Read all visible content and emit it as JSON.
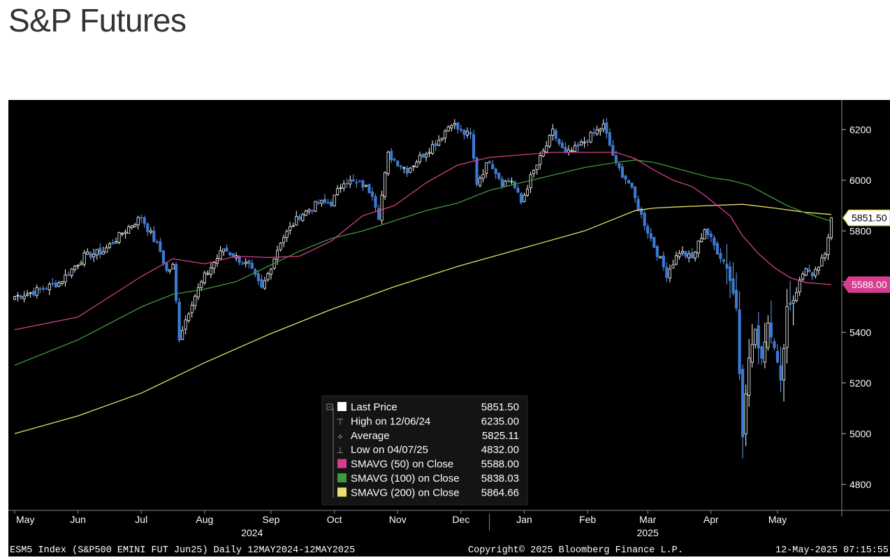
{
  "page": {
    "title": "S&P Futures"
  },
  "colors": {
    "background": "#000000",
    "up_candle": "#ffffff",
    "down_candle": "#3a7bd5",
    "sma50": "#d63d8e",
    "sma100": "#3f9a3a",
    "sma200": "#e8e06a",
    "text": "#ffffff"
  },
  "chart_data": {
    "type": "candlestick",
    "ylim": [
      4700,
      6300
    ],
    "y_ticks": [
      4800,
      5000,
      5200,
      5400,
      5600,
      5800,
      6000,
      6200
    ],
    "y_tick_labels": [
      "4800",
      "5000",
      "5200",
      "5400",
      "",
      "5800",
      "6000",
      "6200"
    ],
    "month_labels": [
      {
        "label": "May",
        "day": 0
      },
      {
        "label": "Jun",
        "day": 20
      },
      {
        "label": "Jul",
        "day": 40
      },
      {
        "label": "Aug",
        "day": 60
      },
      {
        "label": "Sep",
        "day": 81
      },
      {
        "label": "Oct",
        "day": 101
      },
      {
        "label": "Nov",
        "day": 121
      },
      {
        "label": "Dec",
        "day": 141
      },
      {
        "label": "Jan",
        "day": 161
      },
      {
        "label": "Feb",
        "day": 181
      },
      {
        "label": "Mar",
        "day": 200
      },
      {
        "label": "Apr",
        "day": 220
      },
      {
        "label": "May",
        "day": 241
      }
    ],
    "year_labels": [
      {
        "label": "2024",
        "day": 75
      },
      {
        "label": "2025",
        "day": 200
      }
    ],
    "year_separator_day": 150,
    "anchors": [
      [
        0,
        5540
      ],
      [
        6,
        5560
      ],
      [
        14,
        5595
      ],
      [
        22,
        5700
      ],
      [
        28,
        5720
      ],
      [
        36,
        5815
      ],
      [
        40,
        5855
      ],
      [
        46,
        5720
      ],
      [
        48,
        5640
      ],
      [
        50,
        5660
      ],
      [
        52,
        5380
      ],
      [
        56,
        5520
      ],
      [
        60,
        5620
      ],
      [
        66,
        5730
      ],
      [
        74,
        5660
      ],
      [
        78,
        5570
      ],
      [
        80,
        5630
      ],
      [
        84,
        5760
      ],
      [
        90,
        5860
      ],
      [
        96,
        5910
      ],
      [
        100,
        5910
      ],
      [
        104,
        6000
      ],
      [
        110,
        5980
      ],
      [
        113,
        5950
      ],
      [
        115,
        5860
      ],
      [
        118,
        6100
      ],
      [
        124,
        6040
      ],
      [
        128,
        6090
      ],
      [
        134,
        6160
      ],
      [
        138,
        6230
      ],
      [
        141,
        6190
      ],
      [
        144,
        6175
      ],
      [
        146,
        5990
      ],
      [
        150,
        6080
      ],
      [
        154,
        5990
      ],
      [
        157,
        6000
      ],
      [
        160,
        5910
      ],
      [
        163,
        6010
      ],
      [
        167,
        6110
      ],
      [
        170,
        6190
      ],
      [
        174,
        6100
      ],
      [
        178,
        6130
      ],
      [
        182,
        6175
      ],
      [
        186,
        6215
      ],
      [
        190,
        6060
      ],
      [
        194,
        5990
      ],
      [
        198,
        5860
      ],
      [
        202,
        5740
      ],
      [
        206,
        5630
      ],
      [
        210,
        5720
      ],
      [
        214,
        5690
      ],
      [
        218,
        5810
      ],
      [
        222,
        5720
      ],
      [
        225,
        5660
      ],
      [
        228,
        5500
      ],
      [
        230,
        5000
      ],
      [
        232,
        5300
      ],
      [
        234,
        5400
      ],
      [
        236,
        5300
      ],
      [
        238,
        5440
      ],
      [
        240,
        5350
      ],
      [
        242,
        5200
      ],
      [
        244,
        5500
      ],
      [
        246,
        5530
      ],
      [
        248,
        5600
      ],
      [
        250,
        5660
      ],
      [
        252,
        5610
      ],
      [
        254,
        5660
      ],
      [
        256,
        5700
      ],
      [
        258,
        5851.5
      ]
    ],
    "sma50_points": [
      [
        0,
        5410
      ],
      [
        20,
        5460
      ],
      [
        40,
        5620
      ],
      [
        50,
        5690
      ],
      [
        60,
        5670
      ],
      [
        70,
        5700
      ],
      [
        80,
        5695
      ],
      [
        90,
        5700
      ],
      [
        100,
        5760
      ],
      [
        110,
        5860
      ],
      [
        120,
        5900
      ],
      [
        130,
        5990
      ],
      [
        140,
        6060
      ],
      [
        150,
        6090
      ],
      [
        160,
        6100
      ],
      [
        170,
        6110
      ],
      [
        180,
        6110
      ],
      [
        190,
        6110
      ],
      [
        196,
        6085
      ],
      [
        202,
        6040
      ],
      [
        208,
        6000
      ],
      [
        214,
        5975
      ],
      [
        218,
        5940
      ],
      [
        222,
        5900
      ],
      [
        226,
        5860
      ],
      [
        230,
        5780
      ],
      [
        235,
        5710
      ],
      [
        240,
        5655
      ],
      [
        245,
        5615
      ],
      [
        250,
        5596
      ],
      [
        258,
        5588
      ]
    ],
    "sma100_points": [
      [
        0,
        5270
      ],
      [
        20,
        5370
      ],
      [
        40,
        5500
      ],
      [
        50,
        5550
      ],
      [
        60,
        5570
      ],
      [
        70,
        5600
      ],
      [
        80,
        5660
      ],
      [
        90,
        5720
      ],
      [
        100,
        5770
      ],
      [
        110,
        5800
      ],
      [
        120,
        5840
      ],
      [
        130,
        5880
      ],
      [
        140,
        5910
      ],
      [
        150,
        5960
      ],
      [
        160,
        5990
      ],
      [
        170,
        6020
      ],
      [
        180,
        6050
      ],
      [
        190,
        6070
      ],
      [
        196,
        6080
      ],
      [
        202,
        6070
      ],
      [
        208,
        6050
      ],
      [
        214,
        6030
      ],
      [
        220,
        6010
      ],
      [
        226,
        6000
      ],
      [
        232,
        5980
      ],
      [
        238,
        5940
      ],
      [
        244,
        5900
      ],
      [
        250,
        5870
      ],
      [
        258,
        5838.03
      ]
    ],
    "sma200_points": [
      [
        0,
        5000
      ],
      [
        20,
        5070
      ],
      [
        40,
        5160
      ],
      [
        60,
        5280
      ],
      [
        80,
        5390
      ],
      [
        100,
        5490
      ],
      [
        120,
        5580
      ],
      [
        140,
        5660
      ],
      [
        160,
        5730
      ],
      [
        180,
        5800
      ],
      [
        196,
        5880
      ],
      [
        202,
        5890
      ],
      [
        210,
        5895
      ],
      [
        220,
        5900
      ],
      [
        230,
        5905
      ],
      [
        240,
        5890
      ],
      [
        250,
        5873
      ],
      [
        258,
        5864.66
      ]
    ],
    "tags": [
      {
        "label": "5851.50",
        "value": 5851.5,
        "fill": "#ffffff",
        "text_color": "#000000",
        "border": "#e8e06a"
      },
      {
        "label": "5588.00",
        "value": 5588,
        "fill": "#d63d8e",
        "text_color": "#ffffff",
        "border": "#d63d8e"
      }
    ],
    "legend": [
      {
        "swatch": "#ffffff",
        "label": "Last Price",
        "value": "5851.50"
      },
      {
        "swatch": "",
        "label": "High on 12/06/24",
        "value": "6235.00"
      },
      {
        "swatch": "",
        "label": "Average",
        "value": "5825.11"
      },
      {
        "swatch": "",
        "label": "Low on 04/07/25",
        "value": "4832.00"
      },
      {
        "swatch": "#d63d8e",
        "label": "SMAVG (50)  on Close",
        "value": "5588.00"
      },
      {
        "swatch": "#3f9a3a",
        "label": "SMAVG (100)  on Close",
        "value": "5838.03"
      },
      {
        "swatch": "#e8e06a",
        "label": "SMAVG (200)  on Close",
        "value": "5864.66"
      }
    ],
    "footer_left": "ESM5 Index (S&P500 EMINI FUT  Jun25)  Daily 12MAY2024-12MAY2025",
    "footer_center": "Copyright© 2025 Bloomberg Finance L.P.",
    "footer_right": "12-May-2025 07:15:55"
  }
}
